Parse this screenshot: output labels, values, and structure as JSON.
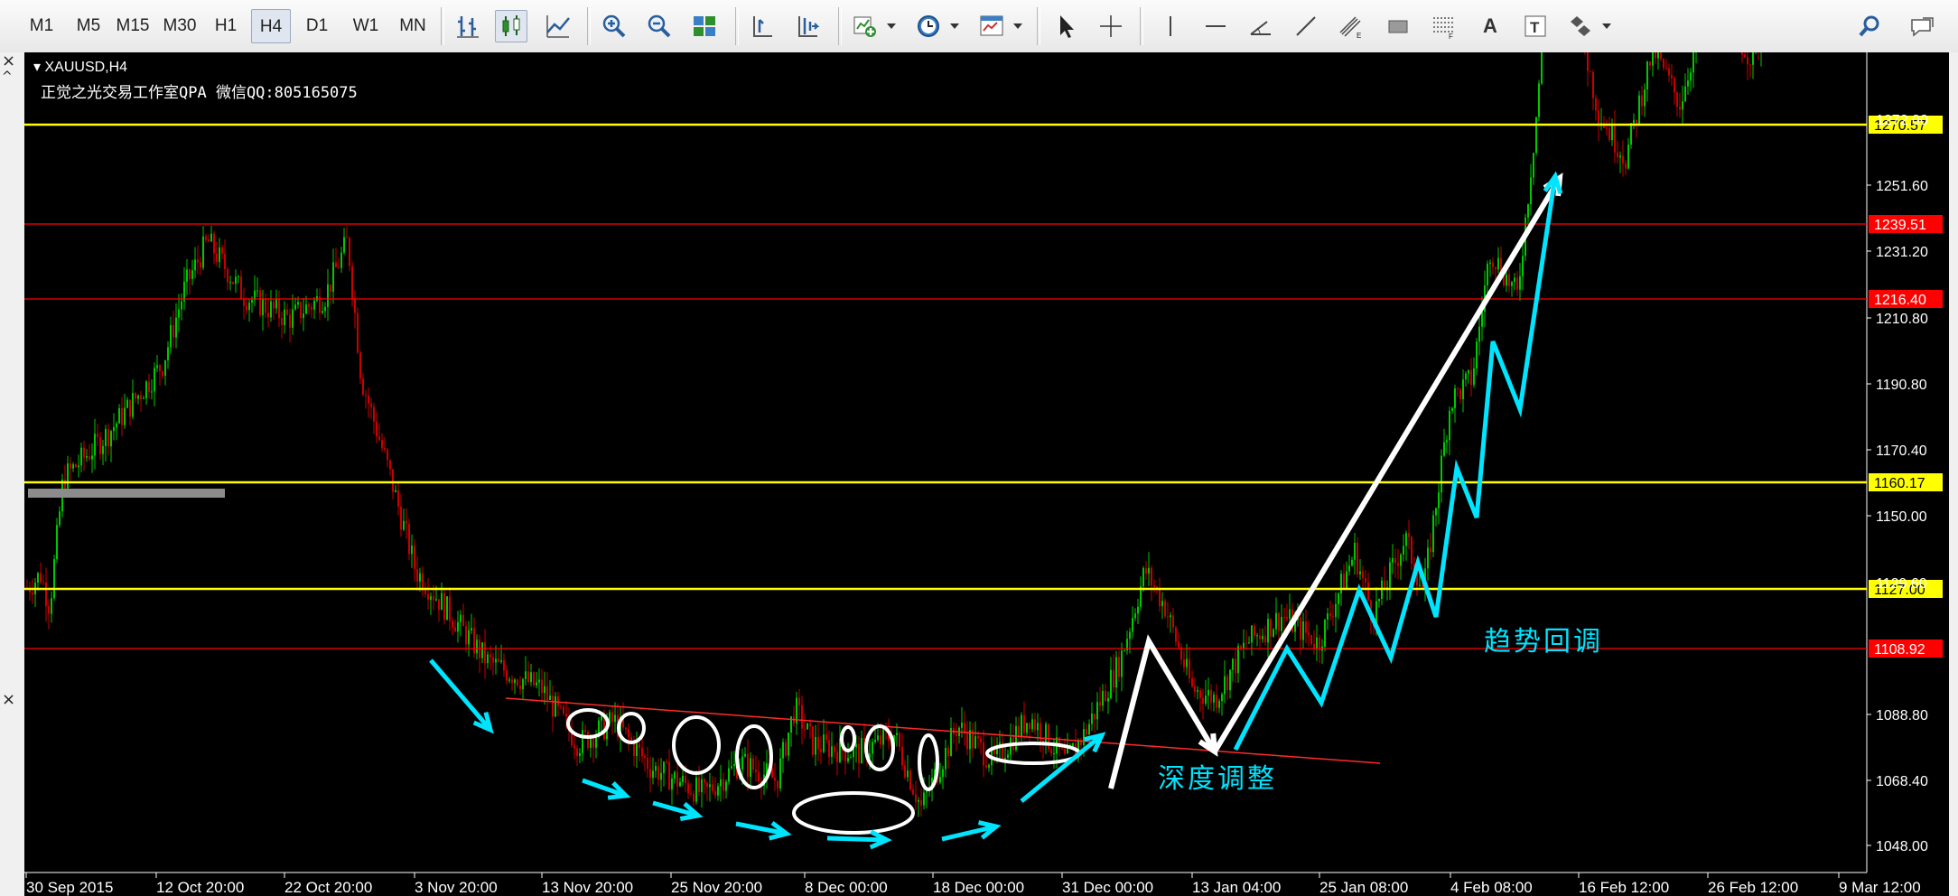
{
  "toolbar": {
    "timeframes": [
      "M1",
      "M5",
      "M15",
      "M30",
      "H1",
      "H4",
      "D1",
      "W1",
      "MN"
    ],
    "active_timeframe": "H4",
    "text_tool_label": "A",
    "label_tool_label": "T"
  },
  "chart": {
    "symbol": "XAUUSD,H4",
    "watermark": "正觉之光交易工作室QPA 微信QQ:805165075",
    "annotation_1": "深度调整",
    "annotation_2": "趋势回调",
    "annotation_color": "#00e5ff",
    "colors": {
      "background": "#000000",
      "bull_candle": "#00c800",
      "bear_candle": "#c80000",
      "support_yellow": "#ffff00",
      "level_red": "#ff0000",
      "price_tag_yellow": "#ffff00",
      "price_tag_red": "#ff0000",
      "axis_text": "#ffffff"
    },
    "price_axis": [
      "1251.60",
      "1231.20",
      "1210.80",
      "1190.80",
      "1170.40",
      "1150.00",
      "1088.80",
      "1068.40",
      "1048.00"
    ],
    "price_axis_partial": [
      "1272.00",
      "1129.60"
    ],
    "price_levels": [
      {
        "label": "1270.57",
        "color": "yellow"
      },
      {
        "label": "1239.51",
        "color": "red"
      },
      {
        "label": "1216.40",
        "color": "red"
      },
      {
        "label": "1160.17",
        "color": "yellow"
      },
      {
        "label": "1127.00",
        "color": "yellow"
      },
      {
        "label": "1108.92",
        "color": "red"
      }
    ],
    "time_axis": [
      "30 Sep 2015",
      "12 Oct 20:00",
      "22 Oct 20:00",
      "3 Nov 20:00",
      "13 Nov 20:00",
      "25 Nov 20:00",
      "8 Dec 00:00",
      "18 Dec 00:00",
      "31 Dec 00:00",
      "13 Jan 04:00",
      "25 Jan 08:00",
      "4 Feb 08:00",
      "16 Feb 12:00",
      "26 Feb 12:00",
      "9 Mar 12:00"
    ]
  }
}
